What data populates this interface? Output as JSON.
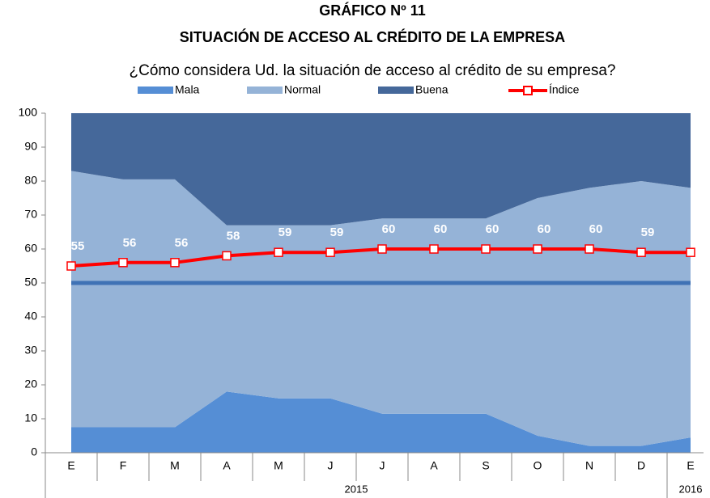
{
  "chart_data": {
    "type": "stacked_area_line",
    "chart_number": "GRÁFICO Nº 11",
    "title": "SITUACIÓN DE ACCESO AL CRÉDITO DE LA EMPRESA",
    "subtitle": "¿Cómo considera Ud. la situación de acceso al crédito de su empresa?",
    "categories": [
      "E",
      "F",
      "M",
      "A",
      "M",
      "J",
      "J",
      "A",
      "S",
      "O",
      "N",
      "D",
      "E"
    ],
    "groups": [
      {
        "label": "2015",
        "count": 12
      },
      {
        "label": "2016",
        "count": 1
      }
    ],
    "series": [
      {
        "name": "Mala",
        "color": "#558ed5",
        "values": [
          7.5,
          7.5,
          7.5,
          18,
          16,
          16,
          11.5,
          11.5,
          11.5,
          5,
          2,
          2,
          4.5
        ]
      },
      {
        "name": "Normal",
        "color": "#95b3d7",
        "values": [
          75.5,
          73,
          73,
          49,
          51,
          51,
          57.5,
          57.5,
          57.5,
          70,
          76,
          78,
          73.5
        ]
      },
      {
        "name": "Buena",
        "color": "#45689a",
        "values": [
          17,
          19.5,
          19.5,
          33,
          33,
          33,
          31,
          31,
          31,
          25,
          22,
          20,
          22
        ]
      }
    ],
    "line": {
      "name": "Índice",
      "color": "#ff0000",
      "values": [
        55,
        56,
        56,
        58,
        59,
        59,
        60,
        60,
        60,
        60,
        60,
        59,
        59
      ]
    },
    "reference_line": {
      "value": 50,
      "color": "#3f72b5"
    },
    "ylim": [
      0,
      100
    ],
    "yticks": [
      0,
      10,
      20,
      30,
      40,
      50,
      60,
      70,
      80,
      90,
      100
    ]
  }
}
